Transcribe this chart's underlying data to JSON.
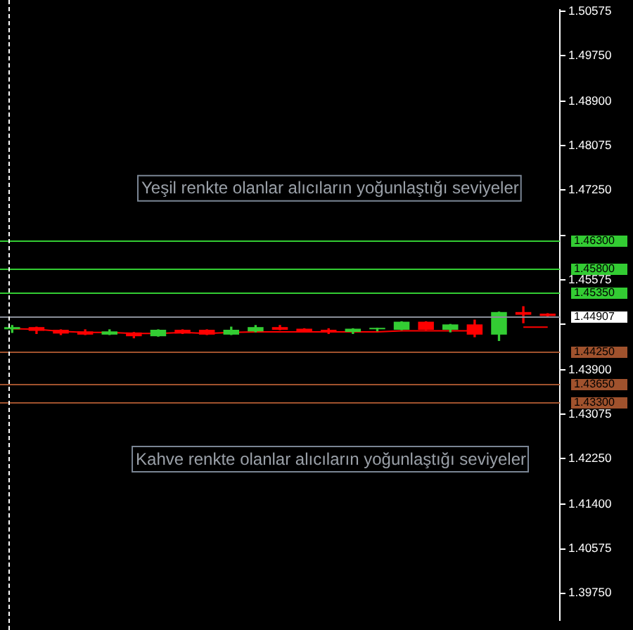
{
  "chart_data": {
    "type": "candlestick",
    "categories": [
      null,
      null,
      null,
      null,
      null,
      null,
      null,
      null,
      null,
      null,
      null,
      null,
      null,
      null,
      null,
      null,
      null,
      null,
      null,
      null,
      null,
      null,
      null
    ],
    "ohlc": [
      [
        1.4466,
        1.4473,
        1.446,
        1.447
      ],
      [
        1.447,
        1.447,
        1.4458,
        1.4463
      ],
      [
        1.4465,
        1.4465,
        1.4456,
        1.4458
      ],
      [
        1.4462,
        1.4465,
        1.4456,
        1.4456
      ],
      [
        1.4456,
        1.4465,
        1.4456,
        1.4462
      ],
      [
        1.446,
        1.446,
        1.445,
        1.4453
      ],
      [
        1.4453,
        1.4465,
        1.4453,
        1.4465
      ],
      [
        1.4465,
        1.4465,
        1.4458,
        1.4458
      ],
      [
        1.4465,
        1.4465,
        1.4456,
        1.4456
      ],
      [
        1.4456,
        1.447,
        1.4456,
        1.4465
      ],
      [
        1.4462,
        1.4473,
        1.4461,
        1.447
      ],
      [
        1.447,
        1.4473,
        1.4465,
        1.4465
      ],
      [
        1.4467,
        1.4467,
        1.4462,
        1.4462
      ],
      [
        1.4465,
        1.4467,
        1.4458,
        1.4461
      ],
      [
        1.4461,
        1.4467,
        1.4458,
        1.4467
      ],
      [
        1.4466,
        1.4468,
        1.4463,
        1.4467
      ],
      [
        1.4465,
        1.448,
        1.4465,
        1.448
      ],
      [
        1.448,
        1.448,
        1.4465,
        1.4465
      ],
      [
        1.4465,
        1.4475,
        1.4461,
        1.4475
      ],
      [
        1.4475,
        1.4483,
        1.4452,
        1.4456
      ],
      [
        1.4456,
        1.4498,
        1.4445,
        1.4498
      ],
      [
        1.4498,
        1.4508,
        1.4478,
        1.4493
      ],
      [
        1.4495,
        1.4495,
        1.44907,
        1.44907
      ]
    ],
    "colors": [
      "#33cc33",
      "#ff0000",
      "#ff0000",
      "#ff0000",
      "#33cc33",
      "#ff0000",
      "#33cc33",
      "#ff0000",
      "#ff0000",
      "#33cc33",
      "#33cc33",
      "#ff0000",
      "#ff0000",
      "#ff0000",
      "#33cc33",
      "#33cc33",
      "#33cc33",
      "#ff0000",
      "#33cc33",
      "#ff0000",
      "#33cc33",
      "#ff0000",
      "#ff0000"
    ],
    "series": [
      {
        "type": "line",
        "color": "#ff0000",
        "values": [
          1.4467,
          1.4466,
          1.4462,
          1.446,
          1.446,
          1.4458,
          1.4458,
          1.446,
          1.4458,
          1.446,
          1.4461,
          1.4461,
          1.4461,
          1.4461,
          1.4461,
          1.4461,
          1.4463,
          1.4463,
          1.4463,
          1.4463,
          null,
          1.447,
          1.447
        ]
      }
    ],
    "ylim": [
      1.3925,
      1.506
    ],
    "yticks": [
      {
        "value": 1.50575,
        "label": "1.50575"
      },
      {
        "value": 1.4975,
        "label": "1.49750"
      },
      {
        "value": 1.489,
        "label": "1.48900"
      },
      {
        "value": 1.48075,
        "label": "1.48075"
      },
      {
        "value": 1.4725,
        "label": "1.47250"
      },
      {
        "value": 1.464,
        "label": null
      },
      {
        "value": 1.45575,
        "label": "1.45575"
      },
      {
        "value": 1.4475,
        "label": null
      },
      {
        "value": 1.439,
        "label": "1.43900"
      },
      {
        "value": 1.43075,
        "label": "1.43075"
      },
      {
        "value": 1.4225,
        "label": "1.42250"
      },
      {
        "value": 1.414,
        "label": "1.41400"
      },
      {
        "value": 1.40575,
        "label": "1.40575"
      },
      {
        "value": 1.3975,
        "label": "1.39750"
      }
    ],
    "ref_lines": [
      {
        "axis": "y",
        "value": 1.463,
        "label": "1.46300",
        "color": "#33cc33"
      },
      {
        "axis": "y",
        "value": 1.458,
        "label": "1.45800",
        "color": "#33cc33"
      },
      {
        "axis": "y",
        "value": 1.4535,
        "label": "1.45350",
        "color": "#33cc33"
      },
      {
        "axis": "y",
        "value": 1.44907,
        "label": "1.44907",
        "color": "#8a8f99"
      },
      {
        "axis": "y",
        "value": 1.4425,
        "label": "1.44250",
        "color": "#a0522d"
      },
      {
        "axis": "y",
        "value": 1.4365,
        "label": "1.43650",
        "color": "#a0522d"
      },
      {
        "axis": "y",
        "value": 1.433,
        "label": "1.43300",
        "color": "#a0522d"
      }
    ],
    "annotations": [
      "Yeşil renkte olanlar alıcıların yoğunlaştığı seviyeler",
      "Kahve renkte olanlar alıcıların yoğunlaştığı seviyeler"
    ],
    "tick_labels": "y",
    "grid": false,
    "legend": false,
    "marker": "none"
  }
}
